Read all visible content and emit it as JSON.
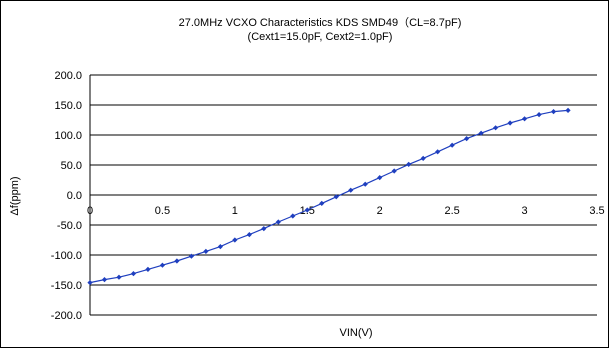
{
  "chart_data": {
    "type": "line",
    "title": "27.0MHz VCXO Characteristics KDS SMD49（CL=8.7pF)",
    "subtitle": "(Cext1=15.0pF,  Cext2=1.0pF)",
    "xlabel": "VIN(V)",
    "ylabel": "Δf(ppm)",
    "xlim": [
      0,
      3.5
    ],
    "ylim": [
      -200,
      200
    ],
    "x_ticks": [
      "0",
      "0.5",
      "1",
      "1.5",
      "2",
      "2.5",
      "3",
      "3.5"
    ],
    "x_tick_values": [
      0,
      0.5,
      1,
      1.5,
      2,
      2.5,
      3,
      3.5
    ],
    "y_ticks": [
      "200.0",
      "150.0",
      "100.0",
      "50.0",
      "0.0",
      "-50.0",
      "-100.0",
      "-150.0",
      "-200.0"
    ],
    "y_tick_values": [
      200,
      150,
      100,
      50,
      0,
      -50,
      -100,
      -150,
      -200
    ],
    "grid": "horizontal",
    "series": [
      {
        "color": "#1f3fbf",
        "x": [
          0,
          0.1,
          0.2,
          0.3,
          0.4,
          0.5,
          0.6,
          0.7,
          0.8,
          0.9,
          1.0,
          1.1,
          1.2,
          1.3,
          1.4,
          1.5,
          1.6,
          1.7,
          1.8,
          1.9,
          2.0,
          2.1,
          2.2,
          2.3,
          2.4,
          2.5,
          2.6,
          2.7,
          2.8,
          2.9,
          3.0,
          3.1,
          3.2,
          3.3
        ],
        "y": [
          -146,
          -141,
          -137,
          -131,
          -124,
          -117,
          -110,
          -102,
          -94,
          -86,
          -75,
          -66,
          -56,
          -45,
          -35,
          -25,
          -14,
          -3,
          8,
          18,
          29,
          40,
          51,
          61,
          72,
          83,
          94,
          103,
          112,
          120,
          127,
          134,
          139,
          141
        ]
      }
    ]
  }
}
